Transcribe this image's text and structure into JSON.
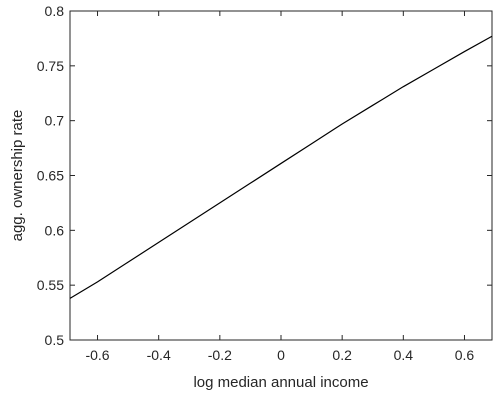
{
  "chart_data": {
    "type": "line",
    "title": "",
    "xlabel": "log median annual income",
    "ylabel": "agg. ownership rate",
    "xlim": [
      -0.69,
      0.69
    ],
    "ylim": [
      0.5,
      0.8
    ],
    "xticks": [
      -0.6,
      -0.4,
      -0.2,
      0,
      0.2,
      0.4,
      0.6
    ],
    "xtick_labels": [
      "-0.6",
      "-0.4",
      "-0.2",
      "0",
      "0.2",
      "0.4",
      "0.6"
    ],
    "yticks": [
      0.5,
      0.55,
      0.6,
      0.65,
      0.7,
      0.75,
      0.8
    ],
    "ytick_labels": [
      "0.5",
      "0.55",
      "0.6",
      "0.65",
      "0.7",
      "0.75",
      "0.8"
    ],
    "grid": false,
    "series": [
      {
        "color": "#000000",
        "x": [
          -0.69,
          -0.6,
          -0.5,
          -0.4,
          -0.3,
          -0.2,
          -0.1,
          0,
          0.1,
          0.2,
          0.3,
          0.4,
          0.5,
          0.6,
          0.69
        ],
        "y": [
          0.538,
          0.553,
          0.571,
          0.589,
          0.607,
          0.625,
          0.643,
          0.661,
          0.679,
          0.697,
          0.714,
          0.731,
          0.747,
          0.763,
          0.777
        ]
      }
    ]
  }
}
